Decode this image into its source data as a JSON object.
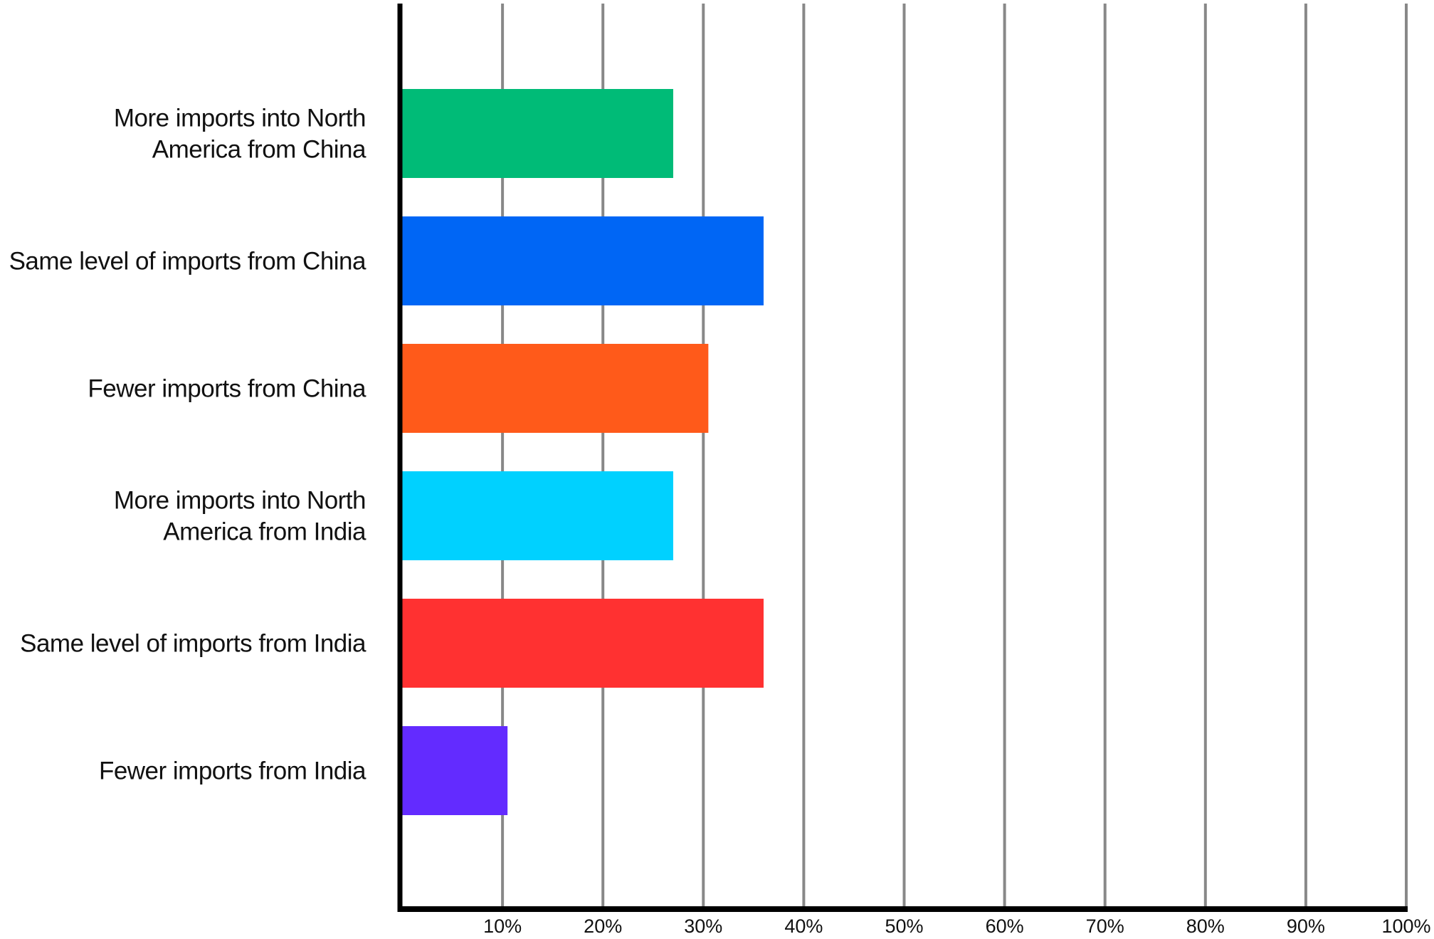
{
  "chart_data": {
    "type": "bar",
    "orientation": "horizontal",
    "title": "",
    "xlabel": "",
    "ylabel": "",
    "categories": [
      [
        "More imports into North",
        "America from China"
      ],
      [
        "Same level of imports from China"
      ],
      [
        "Fewer imports from China"
      ],
      [
        "More imports into North",
        "America from India"
      ],
      [
        "Same level of imports from India"
      ],
      [
        "Fewer imports from India"
      ]
    ],
    "values": [
      27,
      36,
      30.5,
      27,
      36,
      10.5
    ],
    "colors": [
      "#00BB77",
      "#0066F5",
      "#FF5A1A",
      "#00D1FF",
      "#FF3131",
      "#632BFF"
    ],
    "xlim": [
      0,
      100
    ],
    "ticks": [
      10,
      20,
      30,
      40,
      50,
      60,
      70,
      80,
      90,
      100
    ],
    "tick_labels": [
      "10%",
      "20%",
      "30%",
      "40%",
      "50%",
      "60%",
      "70%",
      "80%",
      "90%",
      "100%"
    ],
    "grid": "vertical",
    "grid_color": "#888888",
    "axis_color": "#000000",
    "legend": "none"
  }
}
